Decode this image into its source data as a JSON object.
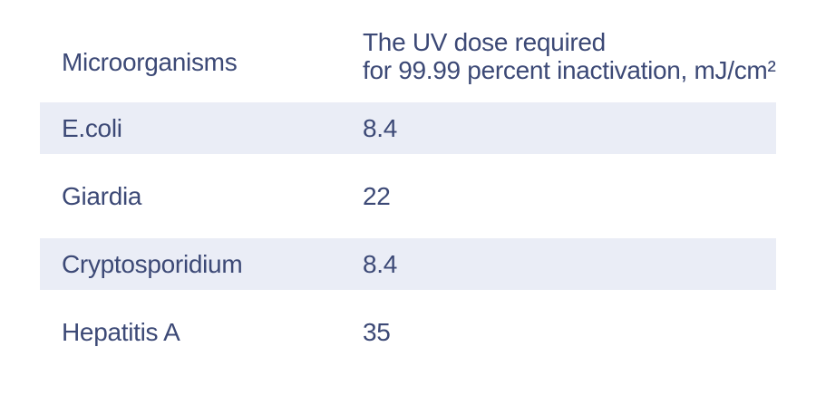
{
  "colors": {
    "background": "#FFFFFF",
    "text": "#3C4976",
    "row_shade": "#EAEDF6"
  },
  "table": {
    "col1_header": "Microorganisms",
    "col2_header_line1": "The UV dose required",
    "col2_header_line2": "for 99.99 percent inactivation, mJ/cm²",
    "rows": [
      {
        "microorganism": "E.coli",
        "uv_dose": "8.4",
        "shaded": true
      },
      {
        "microorganism": "Giardia",
        "uv_dose": "22",
        "shaded": false
      },
      {
        "microorganism": "Cryptosporidium",
        "uv_dose": "8.4",
        "shaded": true
      },
      {
        "microorganism": "Hepatitis A",
        "uv_dose": "35",
        "shaded": false
      }
    ]
  },
  "chart_data": {
    "type": "table",
    "title": "",
    "columns": [
      "Microorganisms",
      "The UV dose required for 99.99 percent inactivation, mJ/cm²"
    ],
    "rows": [
      [
        "E.coli",
        8.4
      ],
      [
        "Giardia",
        22
      ],
      [
        "Cryptosporidium",
        8.4
      ],
      [
        "Hepatitis A",
        35
      ]
    ],
    "layout_hints": {
      "shaded_row_indices": [
        0,
        2
      ],
      "grid": false,
      "unit": "mJ/cm²"
    }
  }
}
